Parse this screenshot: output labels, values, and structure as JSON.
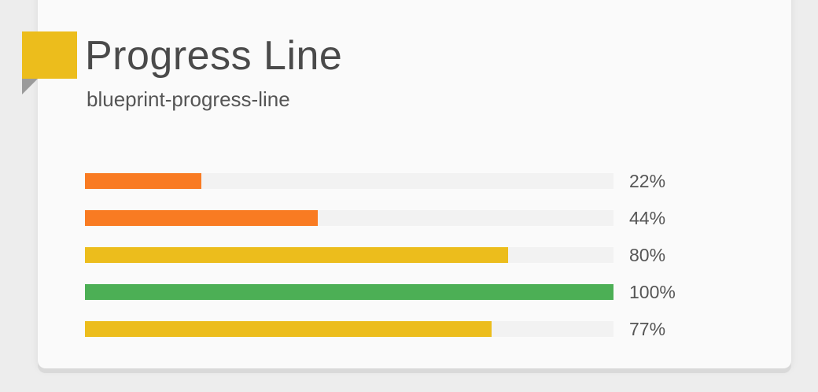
{
  "header": {
    "title": "Progress Line",
    "subtitle": "blueprint-progress-line",
    "accent_color": "#ecbd1c"
  },
  "progress_bars": [
    {
      "value": 22,
      "label": "22%",
      "color": "#f97b22"
    },
    {
      "value": 44,
      "label": "44%",
      "color": "#f97b22"
    },
    {
      "value": 80,
      "label": "80%",
      "color": "#ecbd1c"
    },
    {
      "value": 100,
      "label": "100%",
      "color": "#4caf55"
    },
    {
      "value": 77,
      "label": "77%",
      "color": "#ecbd1c"
    }
  ],
  "track_color": "#f2f2f2"
}
